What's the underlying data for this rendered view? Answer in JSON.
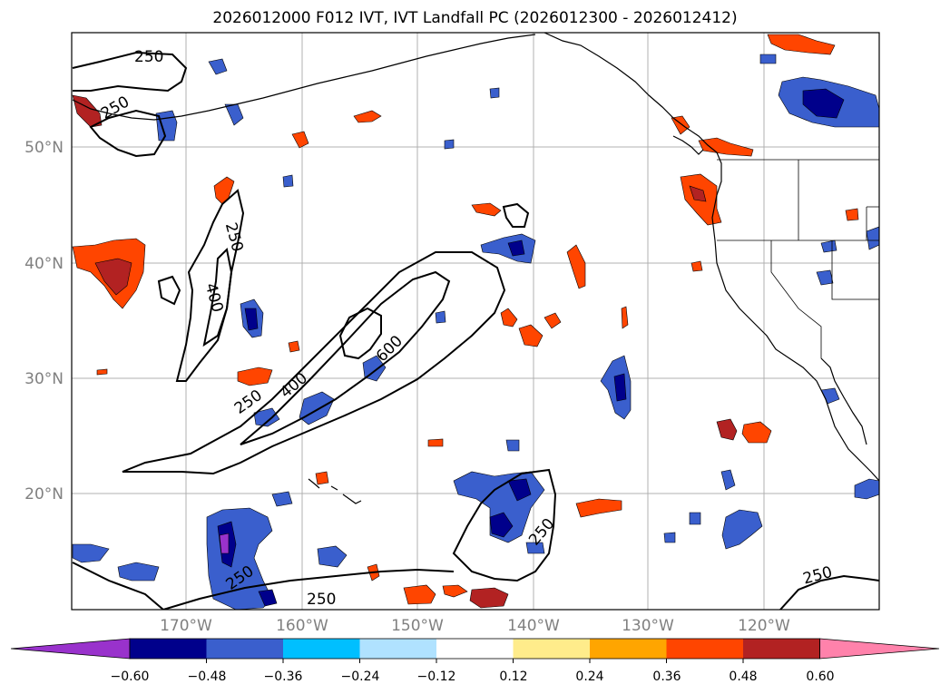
{
  "title": "2026012000 F012 IVT, IVT Landfall PC (2026012300 - 2026012412)",
  "map": {
    "lon_range": [
      -180,
      -110
    ],
    "lat_range": [
      10,
      60
    ],
    "lat_labels": [
      "20°N",
      "30°N",
      "40°N",
      "50°N"
    ],
    "lon_labels": [
      "170°W",
      "160°W",
      "150°W",
      "140°W",
      "130°W",
      "120°W"
    ],
    "contour_labels": [
      "250",
      "250",
      "250",
      "400",
      "250",
      "400",
      "600",
      "250",
      "250",
      "250",
      "250"
    ]
  },
  "colorbar": {
    "colors": [
      "#9932cc",
      "#00008b",
      "#3a5fcd",
      "#00bfff",
      "#b0e2ff",
      "#ffffff",
      "#ffec8b",
      "#ffa500",
      "#ff4500",
      "#b22222",
      "#ff82ab"
    ],
    "ticks": [
      "−0.60",
      "−0.48",
      "−0.36",
      "−0.24",
      "−0.12",
      "0.12",
      "0.24",
      "0.36",
      "0.48",
      "0.60"
    ]
  }
}
